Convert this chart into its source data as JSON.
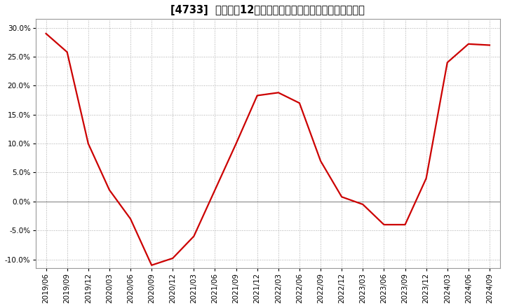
{
  "title": "[4733]  売上高の12か月移動合計の対前年同期増減率の推移",
  "x_labels": [
    "2019/06",
    "2019/09",
    "2019/12",
    "2020/03",
    "2020/06",
    "2020/09",
    "2020/12",
    "2021/03",
    "2021/06",
    "2021/09",
    "2021/12",
    "2022/03",
    "2022/06",
    "2022/09",
    "2022/12",
    "2023/03",
    "2023/06",
    "2023/09",
    "2023/12",
    "2024/03",
    "2024/06",
    "2024/09"
  ],
  "y_values": [
    0.29,
    0.258,
    0.1,
    0.02,
    -0.03,
    -0.11,
    -0.098,
    -0.06,
    0.02,
    0.1,
    0.183,
    0.188,
    0.17,
    0.07,
    0.008,
    -0.005,
    -0.04,
    -0.04,
    0.04,
    0.24,
    0.272,
    0.27
  ],
  "line_color": "#cc0000",
  "background_color": "#ffffff",
  "plot_bg_color": "#ffffff",
  "grid_color": "#aaaaaa",
  "ylim": [
    -0.115,
    0.315
  ],
  "yticks": [
    -0.1,
    -0.05,
    0.0,
    0.05,
    0.1,
    0.15,
    0.2,
    0.25,
    0.3
  ],
  "title_fontsize": 10.5,
  "tick_fontsize": 7.5
}
